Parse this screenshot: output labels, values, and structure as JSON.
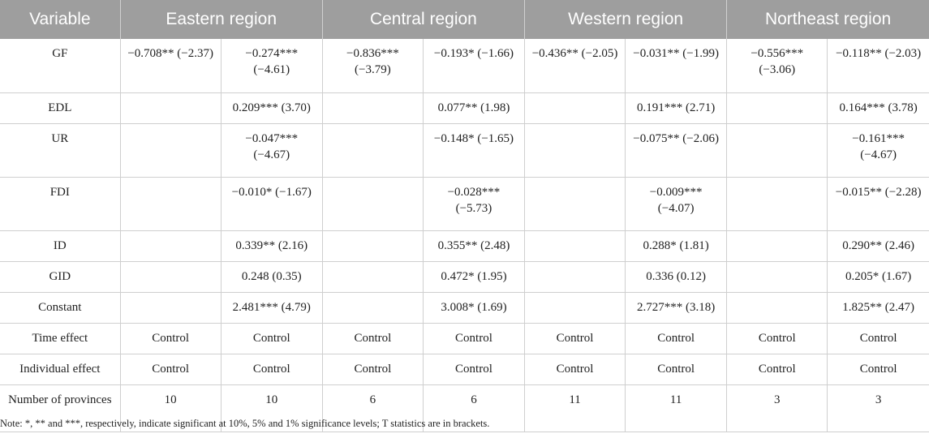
{
  "table": {
    "headers": [
      "Variable",
      "Eastern region",
      "Central region",
      "Western region",
      "Northeast region"
    ],
    "rows": [
      {
        "label": "GF",
        "cells": [
          "−0.708** (−2.37)",
          "−0.274*** (−4.61)",
          "−0.836*** (−3.79)",
          "−0.193* (−1.66)",
          "−0.436** (−2.05)",
          "−0.031** (−1.99)",
          "−0.556*** (−3.06)",
          "−0.118** (−2.03)"
        ]
      },
      {
        "label": "EDL",
        "cells": [
          "",
          "0.209*** (3.70)",
          "",
          "0.077** (1.98)",
          "",
          "0.191*** (2.71)",
          "",
          "0.164*** (3.78)"
        ]
      },
      {
        "label": "UR",
        "cells": [
          "",
          "−0.047*** (−4.67)",
          "",
          "−0.148* (−1.65)",
          "",
          "−0.075** (−2.06)",
          "",
          "−0.161*** (−4.67)"
        ]
      },
      {
        "label": "FDI",
        "cells": [
          "",
          "−0.010* (−1.67)",
          "",
          "−0.028*** (−5.73)",
          "",
          "−0.009*** (−4.07)",
          "",
          "−0.015** (−2.28)"
        ]
      },
      {
        "label": "ID",
        "cells": [
          "",
          "0.339** (2.16)",
          "",
          "0.355** (2.48)",
          "",
          "0.288* (1.81)",
          "",
          "0.290** (2.46)"
        ]
      },
      {
        "label": "GID",
        "cells": [
          "",
          "0.248 (0.35)",
          "",
          "0.472* (1.95)",
          "",
          "0.336 (0.12)",
          "",
          "0.205* (1.67)"
        ]
      },
      {
        "label": "Constant",
        "cells": [
          "",
          "2.481*** (4.79)",
          "",
          "3.008* (1.69)",
          "",
          "2.727*** (3.18)",
          "",
          "1.825** (2.47)"
        ]
      },
      {
        "label": "Time effect",
        "cells": [
          "Control",
          "Control",
          "Control",
          "Control",
          "Control",
          "Control",
          "Control",
          "Control"
        ]
      },
      {
        "label": "Individual effect",
        "cells": [
          "Control",
          "Control",
          "Control",
          "Control",
          "Control",
          "Control",
          "Control",
          "Control"
        ]
      },
      {
        "label": "Number of provinces",
        "cells": [
          "10",
          "10",
          "6",
          "6",
          "11",
          "11",
          "3",
          "3"
        ]
      }
    ]
  },
  "note": "Note: *, ** and ***, respectively, indicate significant at 10%, 5% and 1% significance levels; T statistics are in brackets."
}
